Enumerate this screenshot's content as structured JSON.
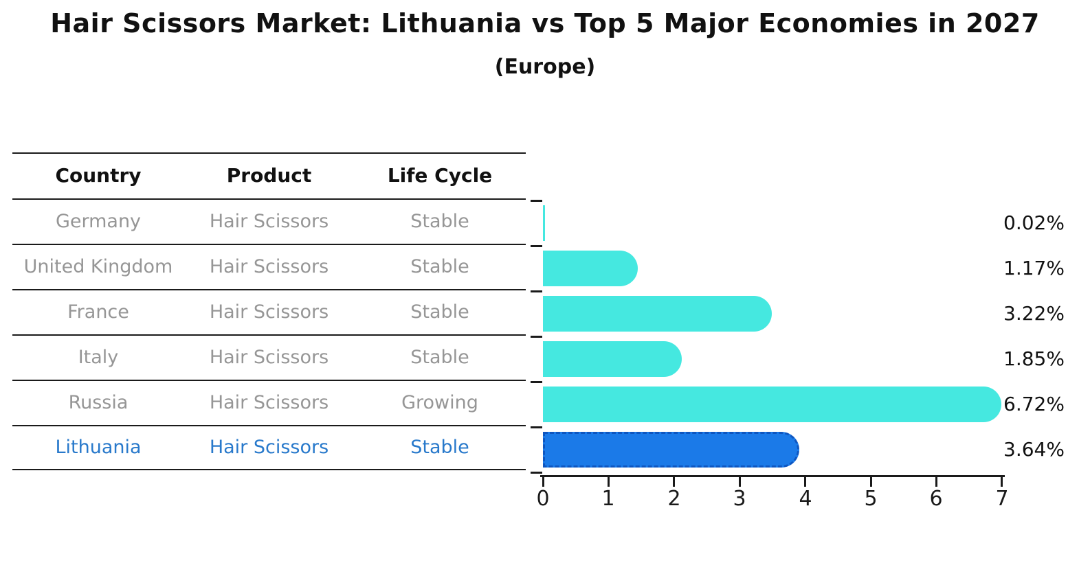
{
  "header": {
    "title": "Hair Scissors Market: Lithuania vs Top 5 Major Economies in 2027",
    "subtitle": "(Europe)"
  },
  "table": {
    "columns": [
      "Country",
      "Product",
      "Life Cycle"
    ],
    "rows": [
      {
        "country": "Germany",
        "product": "Hair Scissors",
        "life_cycle": "Stable",
        "share": "0.02%"
      },
      {
        "country": "United Kingdom",
        "product": "Hair Scissors",
        "life_cycle": "Stable",
        "share": "1.17%"
      },
      {
        "country": "France",
        "product": "Hair Scissors",
        "life_cycle": "Stable",
        "share": "3.22%"
      },
      {
        "country": "Italy",
        "product": "Hair Scissors",
        "life_cycle": "Stable",
        "share": "1.85%"
      },
      {
        "country": "Russia",
        "product": "Hair Scissors",
        "life_cycle": "Growing",
        "share": "6.72%"
      },
      {
        "country": "Lithuania",
        "product": "Hair Scissors",
        "life_cycle": "Stable",
        "share": "3.64%"
      }
    ]
  },
  "chart_data": {
    "type": "bar",
    "orientation": "horizontal",
    "title": "Hair Scissors Market: Lithuania vs Top 5 Major Economies in 2027 (Europe)",
    "categories": [
      "Germany",
      "United Kingdom",
      "France",
      "Italy",
      "Russia",
      "Lithuania"
    ],
    "values": [
      0.02,
      1.17,
      3.22,
      1.85,
      6.72,
      3.64
    ],
    "value_labels": [
      "0.02%",
      "1.17%",
      "3.22%",
      "1.85%",
      "6.72%",
      "3.64%"
    ],
    "xlabel": "",
    "ylabel": "",
    "xlim": [
      0,
      7
    ],
    "x_ticks": [
      "0",
      "1",
      "2",
      "3",
      "4",
      "5",
      "6",
      "7"
    ],
    "grid": false,
    "legend": false,
    "highlight_index": 5,
    "bar_color": "#45e8e0",
    "highlight_color": "#1b7ae8",
    "highlight_border_color": "#0e56c0",
    "highlight_text_color": "#2879cb",
    "row_text_color": "#969696",
    "axis_color": "#1a1a1a"
  }
}
